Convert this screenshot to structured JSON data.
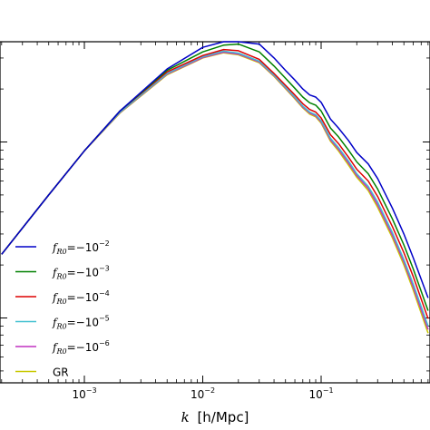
{
  "chart_data": {
    "type": "line",
    "title": "",
    "xlabel_italic": "k",
    "xlabel_unit": "[h/Mpc]",
    "xscale": "log",
    "yscale": "log",
    "xlim": [
      0.0002,
      0.8
    ],
    "x_ticks": [
      {
        "value": 0.001,
        "base": "10",
        "exp": "-3"
      },
      {
        "value": 0.01,
        "base": "10",
        "exp": "-2"
      },
      {
        "value": 0.1,
        "base": "10",
        "exp": "-1"
      }
    ],
    "legend_placement": "lower-left",
    "series": [
      {
        "name_f": "f",
        "name_sub": "R0",
        "name_eq": "=−10",
        "name_sup": "-2",
        "color": "#0000c8",
        "x": [
          0.0002,
          0.0005,
          0.001,
          0.002,
          0.005,
          0.01,
          0.015,
          0.02,
          0.03,
          0.04,
          0.05,
          0.06,
          0.07,
          0.08,
          0.09,
          0.1,
          0.12,
          0.14,
          0.17,
          0.2,
          0.25,
          0.3,
          0.4,
          0.5,
          0.6,
          0.8
        ],
        "y": [
          2300,
          5000,
          8900,
          15000,
          26000,
          34500,
          38500,
          39500,
          36000,
          30000,
          25500,
          22500,
          20000,
          18500,
          18000,
          16800,
          13500,
          12000,
          10200,
          8700,
          7500,
          6200,
          4200,
          3000,
          2200,
          1300
        ]
      },
      {
        "name_f": "f",
        "name_sub": "R0",
        "name_eq": "=−10",
        "name_sup": "-3",
        "color": "#008000",
        "x": [
          0.0002,
          0.0005,
          0.001,
          0.002,
          0.005,
          0.01,
          0.015,
          0.02,
          0.03,
          0.04,
          0.05,
          0.06,
          0.07,
          0.08,
          0.09,
          0.1,
          0.12,
          0.14,
          0.17,
          0.2,
          0.25,
          0.3,
          0.4,
          0.5,
          0.6,
          0.8
        ],
        "y": [
          2300,
          5000,
          8900,
          15000,
          25500,
          32500,
          35500,
          36000,
          32500,
          27000,
          23000,
          20200,
          18000,
          16700,
          16200,
          15000,
          12000,
          10700,
          9000,
          7700,
          6600,
          5400,
          3650,
          2600,
          1900,
          1100
        ]
      },
      {
        "name_f": "f",
        "name_sub": "R0",
        "name_eq": "=−10",
        "name_sup": "-4",
        "color": "#dd0000",
        "x": [
          0.0002,
          0.0005,
          0.001,
          0.002,
          0.005,
          0.01,
          0.015,
          0.02,
          0.03,
          0.04,
          0.05,
          0.06,
          0.07,
          0.08,
          0.09,
          0.1,
          0.12,
          0.14,
          0.17,
          0.2,
          0.25,
          0.3,
          0.4,
          0.5,
          0.6,
          0.8
        ],
        "y": [
          2300,
          5000,
          8900,
          15000,
          25000,
          31000,
          33500,
          33000,
          29500,
          24500,
          21000,
          18500,
          16500,
          15300,
          14800,
          13700,
          11000,
          9800,
          8200,
          7000,
          6000,
          4900,
          3300,
          2350,
          1720,
          990
        ]
      },
      {
        "name_f": "f",
        "name_sub": "R0",
        "name_eq": "=−10",
        "name_sup": "-5",
        "color": "#40c0d0",
        "x": [
          0.0002,
          0.0005,
          0.001,
          0.002,
          0.005,
          0.01,
          0.015,
          0.02,
          0.03,
          0.04,
          0.05,
          0.06,
          0.07,
          0.08,
          0.09,
          0.1,
          0.12,
          0.14,
          0.17,
          0.2,
          0.25,
          0.3,
          0.4,
          0.5,
          0.6,
          0.8
        ],
        "y": [
          2300,
          5000,
          8900,
          14800,
          24500,
          30500,
          32800,
          32000,
          28800,
          24000,
          20500,
          18000,
          16000,
          14800,
          14300,
          13200,
          10500,
          9300,
          7800,
          6600,
          5600,
          4550,
          3050,
          2150,
          1560,
          900
        ]
      },
      {
        "name_f": "f",
        "name_sub": "R0",
        "name_eq": "=−10",
        "name_sup": "-6",
        "color": "#c030c0",
        "x": [
          0.0002,
          0.0005,
          0.001,
          0.002,
          0.005,
          0.01,
          0.015,
          0.02,
          0.03,
          0.04,
          0.05,
          0.06,
          0.07,
          0.08,
          0.09,
          0.1,
          0.12,
          0.14,
          0.17,
          0.2,
          0.25,
          0.3,
          0.4,
          0.5,
          0.6,
          0.8
        ],
        "y": [
          2300,
          5000,
          8900,
          14700,
          24300,
          30200,
          32400,
          31600,
          28500,
          23800,
          20300,
          17800,
          15800,
          14600,
          14100,
          13000,
          10300,
          9100,
          7600,
          6450,
          5450,
          4400,
          2950,
          2080,
          1500,
          860
        ]
      },
      {
        "name_f": "",
        "name_sub": "",
        "name_eq": "GR",
        "name_sup": "",
        "color": "#c8c800",
        "x": [
          0.0002,
          0.0005,
          0.001,
          0.002,
          0.005,
          0.01,
          0.015,
          0.02,
          0.03,
          0.04,
          0.05,
          0.06,
          0.07,
          0.08,
          0.09,
          0.1,
          0.12,
          0.14,
          0.17,
          0.2,
          0.25,
          0.3,
          0.4,
          0.5,
          0.6,
          0.8
        ],
        "y": [
          2300,
          5000,
          8900,
          14600,
          24100,
          30000,
          32100,
          31300,
          28200,
          23600,
          20100,
          17600,
          15600,
          14400,
          13900,
          12800,
          10100,
          8900,
          7400,
          6300,
          5300,
          4250,
          2850,
          2000,
          1440,
          820
        ]
      }
    ]
  }
}
